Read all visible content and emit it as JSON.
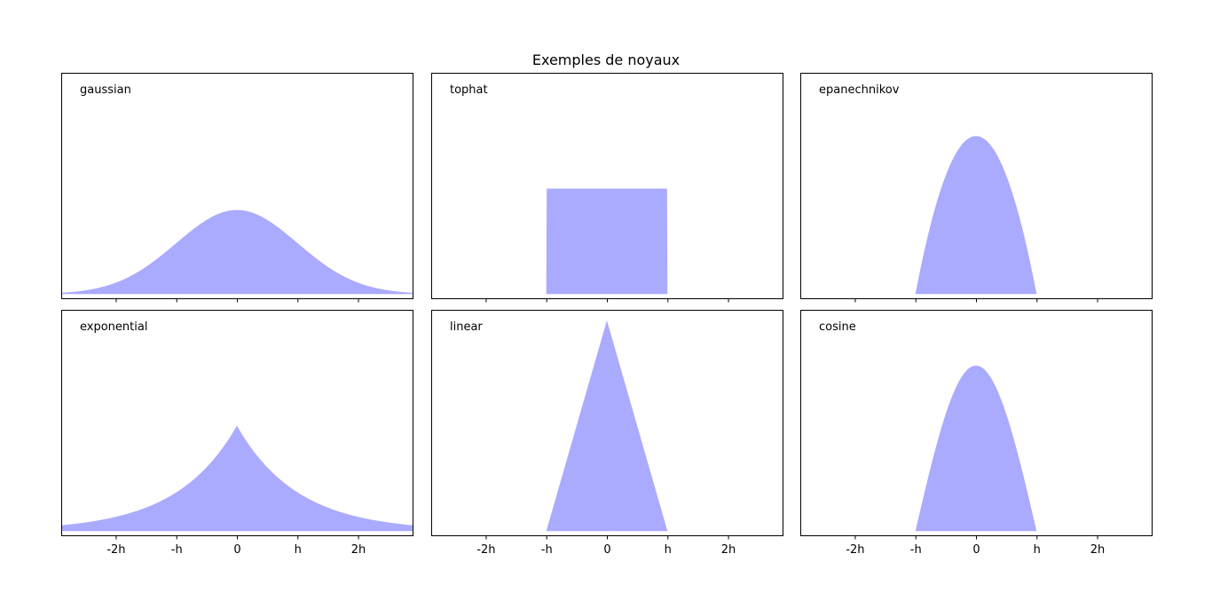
{
  "title": "Exemples de noyaux",
  "fill_color": "#aaaaff",
  "chart_data": {
    "type": "area",
    "title": "Exemples de noyaux",
    "xlabel": "",
    "ylabel": "",
    "xlim": [
      -2.9,
      2.9
    ],
    "ylim": [
      -0.02,
      1.05
    ],
    "x_ticks": [
      -2,
      -1,
      0,
      1,
      2
    ],
    "x_tick_labels": [
      "-2h",
      "-h",
      "0",
      "h",
      "2h"
    ],
    "grid": false,
    "panels": [
      {
        "kernel": "gaussian",
        "label": "gaussian"
      },
      {
        "kernel": "tophat",
        "label": "tophat"
      },
      {
        "kernel": "epanechnikov",
        "label": "epanechnikov"
      },
      {
        "kernel": "exponential",
        "label": "exponential"
      },
      {
        "kernel": "linear",
        "label": "linear"
      },
      {
        "kernel": "cosine",
        "label": "cosine"
      }
    ]
  }
}
